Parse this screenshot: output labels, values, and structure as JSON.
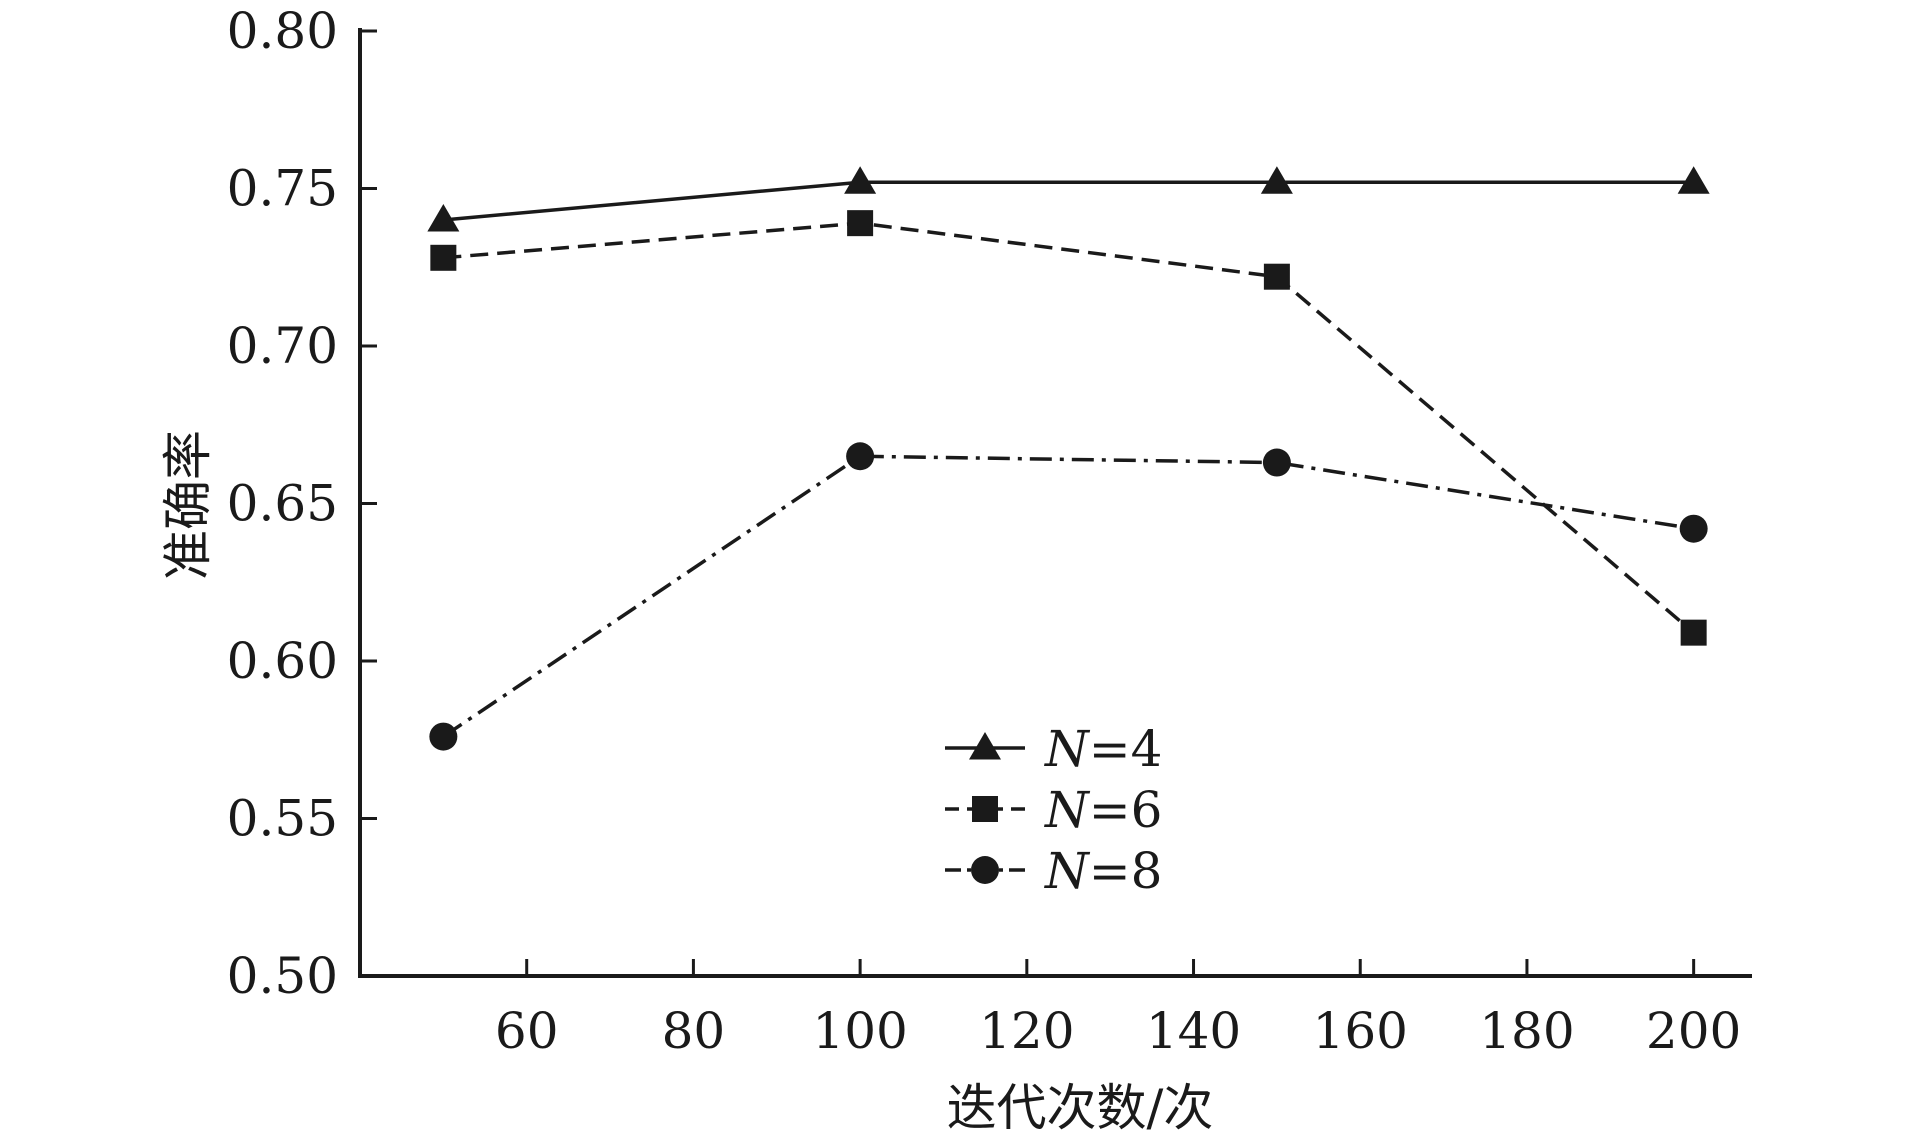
{
  "chart_data": {
    "type": "line",
    "title": "",
    "xlabel": "迭代次数/次",
    "ylabel": "准确率",
    "xlim": [
      40,
      207
    ],
    "ylim": [
      0.5,
      0.8
    ],
    "x_ticks": [
      60,
      80,
      100,
      120,
      140,
      160,
      180,
      200
    ],
    "x_tick_labels": [
      "60",
      "80",
      "100",
      "120",
      "140",
      "160",
      "180",
      "200"
    ],
    "y_ticks": [
      0.5,
      0.55,
      0.6,
      0.65,
      0.7,
      0.75,
      0.8
    ],
    "y_tick_labels": [
      "0.50",
      "0.55",
      "0.60",
      "0.65",
      "0.70",
      "0.75",
      "0.80"
    ],
    "grid": false,
    "legend_position": "center",
    "x": [
      50,
      100,
      150,
      200
    ],
    "series": [
      {
        "name": "N=4",
        "name_var": "N",
        "name_rest": "=4",
        "marker": "triangle",
        "dash": "solid",
        "values": [
          0.74,
          0.752,
          0.752,
          0.752
        ]
      },
      {
        "name": "N=6",
        "name_var": "N",
        "name_rest": "=6",
        "marker": "square",
        "dash": "dashed",
        "values": [
          0.728,
          0.739,
          0.722,
          0.609
        ]
      },
      {
        "name": "N=8",
        "name_var": "N",
        "name_rest": "=8",
        "marker": "circle",
        "dash": "dashdot",
        "values": [
          0.576,
          0.665,
          0.663,
          0.642
        ]
      }
    ],
    "colors": {
      "line": "#1a1a1a",
      "background": "#ffffff"
    }
  }
}
